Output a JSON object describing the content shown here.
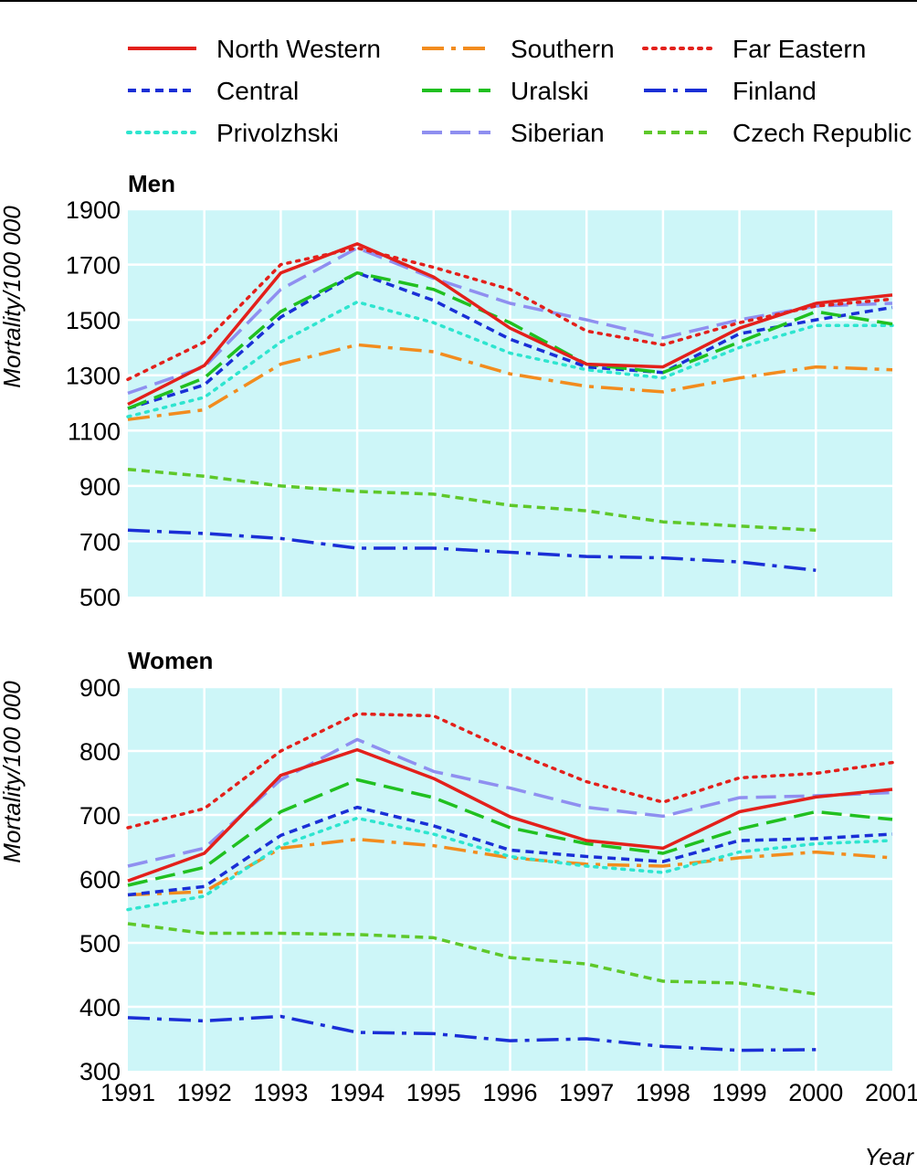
{
  "chart_data": {
    "type": "line",
    "x": [
      1991,
      1992,
      1993,
      1994,
      1995,
      1996,
      1997,
      1998,
      1999,
      2000,
      2001
    ],
    "xlabel": "Year",
    "legend_placement": "top",
    "legend": [
      {
        "key": "north_western",
        "name": "North Western",
        "color": "#e3201b",
        "dash": "solid"
      },
      {
        "key": "southern",
        "name": "Southern",
        "color": "#f28c1e",
        "dash": "dashdot"
      },
      {
        "key": "far_eastern",
        "name": "Far Eastern",
        "color": "#e3201b",
        "dash": "dotted"
      },
      {
        "key": "central",
        "name": "Central",
        "color": "#1a2fd6",
        "dash": "shortdash"
      },
      {
        "key": "uralski",
        "name": "Uralski",
        "color": "#20c020",
        "dash": "longdash"
      },
      {
        "key": "finland",
        "name": "Finland",
        "color": "#1a2fd6",
        "dash": "dashdot"
      },
      {
        "key": "privolzhski",
        "name": "Privolzhski",
        "color": "#2ee5cf",
        "dash": "dotted"
      },
      {
        "key": "siberian",
        "name": "Siberian",
        "color": "#8f8ff0",
        "dash": "longdash"
      },
      {
        "key": "czech",
        "name": "Czech Republic",
        "color": "#5ec82a",
        "dash": "shortdash"
      }
    ],
    "panels": [
      {
        "title": "Men",
        "ylabel": "Mortality/100 000",
        "ylim": [
          500,
          1900
        ],
        "yticks": [
          500,
          700,
          900,
          1100,
          1300,
          1500,
          1700,
          1900
        ],
        "series": {
          "north_western": [
            1195,
            1335,
            1670,
            1775,
            1655,
            1470,
            1340,
            1330,
            1470,
            1560,
            1590
          ],
          "southern": [
            1140,
            1175,
            1340,
            1410,
            1385,
            1305,
            1260,
            1240,
            1290,
            1330,
            1320
          ],
          "far_eastern": [
            1285,
            1420,
            1700,
            1760,
            1690,
            1610,
            1460,
            1410,
            1490,
            1550,
            1575
          ],
          "central": [
            1180,
            1265,
            1510,
            1670,
            1570,
            1430,
            1330,
            1310,
            1450,
            1500,
            1545
          ],
          "uralski": [
            1180,
            1290,
            1530,
            1670,
            1610,
            1490,
            1340,
            1310,
            1420,
            1530,
            1485
          ],
          "finland": [
            740,
            728,
            710,
            675,
            675,
            660,
            645,
            640,
            625,
            595,
            null
          ],
          "privolzhski": [
            1150,
            1220,
            1420,
            1565,
            1490,
            1380,
            1320,
            1290,
            1400,
            1480,
            1480
          ],
          "siberian": [
            1235,
            1330,
            1610,
            1760,
            1650,
            1560,
            1500,
            1435,
            1500,
            1550,
            1560
          ],
          "czech": [
            960,
            935,
            900,
            880,
            870,
            830,
            810,
            770,
            755,
            740,
            null
          ]
        }
      },
      {
        "title": "Women",
        "ylabel": "Mortality/100 000",
        "ylim": [
          300,
          900
        ],
        "yticks": [
          300,
          400,
          500,
          600,
          700,
          800,
          900
        ],
        "series": {
          "north_western": [
            597,
            640,
            762,
            802,
            757,
            697,
            660,
            648,
            705,
            728,
            740
          ],
          "southern": [
            575,
            580,
            648,
            662,
            652,
            633,
            623,
            620,
            633,
            642,
            633
          ],
          "far_eastern": [
            680,
            710,
            800,
            858,
            855,
            800,
            752,
            720,
            758,
            765,
            782
          ],
          "central": [
            575,
            588,
            668,
            712,
            683,
            645,
            635,
            627,
            660,
            663,
            670
          ],
          "uralski": [
            590,
            618,
            705,
            755,
            727,
            680,
            655,
            640,
            678,
            705,
            693
          ],
          "finland": [
            383,
            378,
            385,
            360,
            358,
            347,
            350,
            338,
            332,
            333,
            null
          ],
          "privolzhski": [
            552,
            573,
            652,
            695,
            670,
            635,
            620,
            610,
            642,
            655,
            660
          ],
          "siberian": [
            620,
            648,
            755,
            818,
            768,
            742,
            712,
            698,
            727,
            730,
            735
          ],
          "czech": [
            530,
            515,
            515,
            513,
            508,
            477,
            467,
            440,
            437,
            420,
            null
          ]
        }
      }
    ]
  }
}
